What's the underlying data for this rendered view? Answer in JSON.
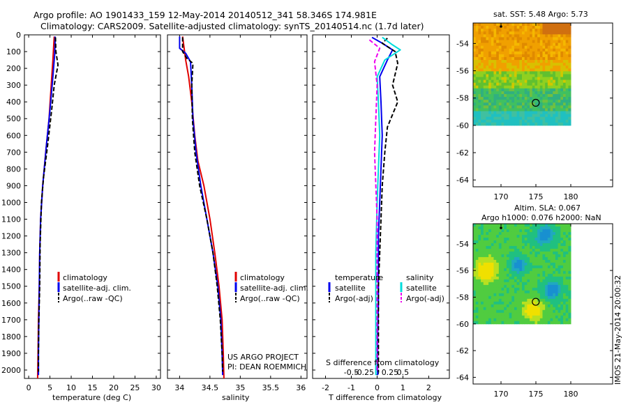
{
  "header": {
    "line1": "Argo profile: AO 1901433_159 12-May-2014 20140512_341 58.346S 174.981E",
    "line2": "Climatology: CARS2009. Satellite-adjusted climatology: synTS_20140514.nc (1.7d later)"
  },
  "colors": {
    "climatology": "#e00000",
    "satellite": "#0000ee",
    "argo": "#000000",
    "sat_temperature": "#00dddd",
    "argo_salinity": "#ee00ee"
  },
  "chart_data": [
    {
      "id": "temperature",
      "type": "line",
      "xlabel": "temperature (deg C)",
      "ylabel": "",
      "xlim": [
        -1,
        31
      ],
      "ylim": [
        2050,
        0
      ],
      "xticks": [
        "0",
        "5",
        "10",
        "15",
        "20",
        "25",
        "30"
      ],
      "yticks": [
        "0",
        "100",
        "200",
        "300",
        "400",
        "500",
        "600",
        "700",
        "800",
        "900",
        "1000",
        "1100",
        "1200",
        "1300",
        "1400",
        "1500",
        "1600",
        "1700",
        "1800",
        "1900",
        "2000"
      ],
      "legend": [
        "climatology",
        "satellite-adj. clim.",
        "Argo(..raw -QC)"
      ],
      "series": [
        {
          "name": "climatology",
          "color": "climatology",
          "style": "solid",
          "points": [
            [
              6.0,
              10
            ],
            [
              5.9,
              60
            ],
            [
              5.7,
              150
            ],
            [
              5.3,
              300
            ],
            [
              4.8,
              500
            ],
            [
              4.0,
              700
            ],
            [
              3.3,
              900
            ],
            [
              2.8,
              1100
            ],
            [
              2.6,
              1300
            ],
            [
              2.5,
              1500
            ],
            [
              2.3,
              1700
            ],
            [
              2.2,
              1900
            ],
            [
              2.1,
              2050
            ]
          ]
        },
        {
          "name": "satellite-adj. clim.",
          "color": "satellite",
          "style": "solid",
          "points": [
            [
              6.2,
              10
            ],
            [
              6.2,
              60
            ],
            [
              6.1,
              120
            ],
            [
              5.7,
              250
            ],
            [
              5.0,
              450
            ],
            [
              4.2,
              650
            ],
            [
              3.3,
              900
            ],
            [
              2.8,
              1100
            ],
            [
              2.6,
              1300
            ],
            [
              2.5,
              1500
            ],
            [
              2.4,
              1700
            ],
            [
              2.3,
              1900
            ],
            [
              2.3,
              2030
            ]
          ]
        },
        {
          "name": "Argo(..raw -QC)",
          "color": "argo",
          "style": "dash",
          "points": [
            [
              6.3,
              15
            ],
            [
              6.4,
              100
            ],
            [
              6.9,
              180
            ],
            [
              6.0,
              300
            ],
            [
              5.4,
              450
            ],
            [
              4.5,
              650
            ],
            [
              3.5,
              850
            ],
            [
              3.0,
              1000
            ],
            [
              2.7,
              1250
            ],
            [
              2.6,
              1500
            ],
            [
              2.4,
              1700
            ],
            [
              2.3,
              1900
            ],
            [
              2.3,
              2010
            ]
          ]
        }
      ]
    },
    {
      "id": "salinity",
      "type": "line",
      "xlabel": "salinity",
      "ylabel": "",
      "xlim": [
        33.8,
        36.1
      ],
      "ylim": [
        2050,
        0
      ],
      "xticks": [
        "34",
        "34.5",
        "35",
        "35.5",
        "36"
      ],
      "legend": [
        "climatology",
        "satellite-adj. clim.",
        "Argo(..raw -QC)"
      ],
      "annotation": [
        "US ARGO PROJECT",
        "PI: DEAN ROEMMICH"
      ],
      "series": [
        {
          "name": "climatology",
          "color": "climatology",
          "style": "solid",
          "points": [
            [
              34.05,
              10
            ],
            [
              34.1,
              150
            ],
            [
              34.15,
              250
            ],
            [
              34.2,
              400
            ],
            [
              34.25,
              600
            ],
            [
              34.3,
              750
            ],
            [
              34.4,
              900
            ],
            [
              34.5,
              1100
            ],
            [
              34.58,
              1300
            ],
            [
              34.65,
              1500
            ],
            [
              34.7,
              1700
            ],
            [
              34.72,
              1900
            ],
            [
              34.73,
              2050
            ]
          ]
        },
        {
          "name": "satellite-adj. clim.",
          "color": "satellite",
          "style": "solid",
          "points": [
            [
              34.0,
              10
            ],
            [
              34.0,
              80
            ],
            [
              34.1,
              110
            ],
            [
              34.18,
              160
            ],
            [
              34.2,
              300
            ],
            [
              34.22,
              500
            ],
            [
              34.27,
              700
            ],
            [
              34.35,
              900
            ],
            [
              34.45,
              1100
            ],
            [
              34.55,
              1300
            ],
            [
              34.63,
              1500
            ],
            [
              34.68,
              1700
            ],
            [
              34.7,
              1900
            ],
            [
              34.71,
              2030
            ]
          ]
        },
        {
          "name": "Argo(..raw -QC)",
          "color": "argo",
          "style": "dash",
          "points": [
            [
              34.05,
              15
            ],
            [
              34.05,
              100
            ],
            [
              34.12,
              140
            ],
            [
              34.22,
              170
            ],
            [
              34.2,
              300
            ],
            [
              34.21,
              500
            ],
            [
              34.25,
              700
            ],
            [
              34.33,
              900
            ],
            [
              34.45,
              1100
            ],
            [
              34.55,
              1300
            ],
            [
              34.62,
              1500
            ],
            [
              34.67,
              1700
            ],
            [
              34.7,
              1900
            ],
            [
              34.71,
              2010
            ]
          ]
        }
      ]
    },
    {
      "id": "difference",
      "type": "line",
      "xlabel": "T difference from climatology",
      "ylabel": "",
      "xlim": [
        -2.5,
        2.8
      ],
      "ylim": [
        2050,
        0
      ],
      "xticks": [
        "-2",
        "-1",
        "0",
        "1",
        "2"
      ],
      "top_label": "S difference from climatology",
      "top_ticks": [
        "-0.5",
        "-0.25",
        "0",
        "0.25",
        "0.5"
      ],
      "legend_headers": [
        "temperature",
        "salinity"
      ],
      "legend_temperature": [
        "satellite",
        "Argo(-adj)"
      ],
      "legend_salinity": [
        "satellite",
        "Argo(-adj)"
      ],
      "series": [
        {
          "name": "satellite",
          "group": "temperature",
          "color": "satellite",
          "style": "solid",
          "points": [
            [
              -0.2,
              15
            ],
            [
              0.2,
              50
            ],
            [
              0.6,
              90
            ],
            [
              0.4,
              150
            ],
            [
              0.1,
              250
            ],
            [
              0.15,
              400
            ],
            [
              0.2,
              600
            ],
            [
              0.15,
              800
            ],
            [
              0.1,
              1000
            ],
            [
              0.05,
              1200
            ],
            [
              0.05,
              1400
            ],
            [
              0.05,
              1600
            ],
            [
              0.02,
              1800
            ],
            [
              0.02,
              2030
            ]
          ]
        },
        {
          "name": "Argo(-adj)",
          "group": "temperature",
          "color": "argo",
          "style": "dash",
          "points": [
            [
              0.4,
              20
            ],
            [
              0.2,
              50
            ],
            [
              0.7,
              100
            ],
            [
              0.8,
              170
            ],
            [
              0.6,
              300
            ],
            [
              0.8,
              400
            ],
            [
              0.4,
              550
            ],
            [
              0.3,
              700
            ],
            [
              0.2,
              900
            ],
            [
              0.15,
              1100
            ],
            [
              0.1,
              1300
            ],
            [
              0.05,
              1500
            ],
            [
              0.05,
              1700
            ],
            [
              0.05,
              1900
            ],
            [
              0.05,
              2010
            ]
          ]
        },
        {
          "name": "satellite",
          "group": "salinity",
          "color": "sat_temperature",
          "style": "solid",
          "points": [
            [
              0.2,
              15
            ],
            [
              0.6,
              60
            ],
            [
              0.9,
              90
            ],
            [
              0.3,
              150
            ],
            [
              0.0,
              250
            ],
            [
              0.05,
              400
            ],
            [
              0.1,
              600
            ],
            [
              0.05,
              800
            ],
            [
              0.0,
              1000
            ],
            [
              -0.05,
              1300
            ],
            [
              -0.05,
              1600
            ],
            [
              -0.05,
              1800
            ],
            [
              -0.05,
              2030
            ]
          ]
        },
        {
          "name": "Argo(-adj)",
          "group": "salinity",
          "color": "argo_salinity",
          "style": "dash",
          "points": [
            [
              -0.3,
              30
            ],
            [
              0.1,
              80
            ],
            [
              -0.1,
              160
            ],
            [
              0.0,
              300
            ],
            [
              -0.05,
              500
            ],
            [
              -0.1,
              700
            ],
            [
              -0.05,
              900
            ],
            [
              0.0,
              1100
            ],
            [
              0.0,
              1300
            ],
            [
              0.0,
              1500
            ],
            [
              0.0,
              1700
            ],
            [
              0.0,
              1900
            ],
            [
              0.0,
              2010
            ]
          ]
        }
      ]
    },
    {
      "id": "sat-sst-map",
      "type": "heatmap",
      "title": "sat. SST: 5.48 Argo: 5.73",
      "xlim": [
        166,
        186
      ],
      "ylim": [
        -64.5,
        -52.5
      ],
      "xticks": [
        "170",
        "175",
        "180"
      ],
      "yticks": [
        "-54",
        "-56",
        "-58",
        "-60",
        "-62",
        "-64"
      ],
      "field_lon": [
        166,
        180
      ],
      "field_lat": [
        -60,
        -52.5
      ],
      "float_position": [
        174.981,
        -58.346
      ]
    },
    {
      "id": "sla-map",
      "type": "heatmap",
      "title": "Altim. SLA: 0.067",
      "subtitle": "Argo h1000: 0.076 h2000: NaN",
      "xlim": [
        166,
        186
      ],
      "ylim": [
        -64.5,
        -52.5
      ],
      "xticks": [
        "170",
        "175",
        "180"
      ],
      "yticks": [
        "-54",
        "-56",
        "-58",
        "-60",
        "-62",
        "-64"
      ],
      "field_lon": [
        166,
        180
      ],
      "field_lat": [
        -60,
        -52.5
      ],
      "float_position": [
        174.981,
        -58.346
      ]
    }
  ],
  "footer": {
    "stamp": "IMOS 21-May-2014 20:00:32"
  }
}
